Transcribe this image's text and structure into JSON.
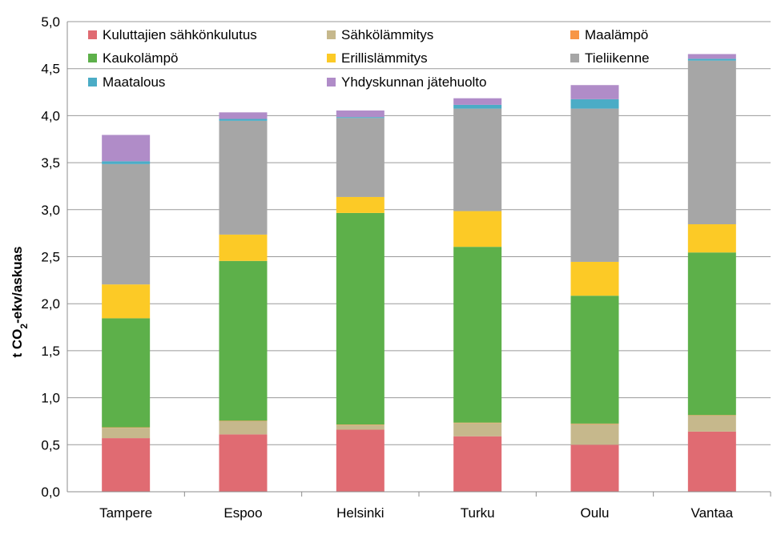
{
  "chart_data": {
    "type": "bar",
    "stacked": true,
    "title": "",
    "xlabel": "",
    "ylabel_parts": {
      "pre": "t CO",
      "sub": "2",
      "post": "-ekv/askuas"
    },
    "ylim": [
      0,
      5
    ],
    "ytick_step": 0.5,
    "yticks": [
      "0,0",
      "0,5",
      "1,0",
      "1,5",
      "2,0",
      "2,5",
      "3,0",
      "3,5",
      "4,0",
      "4,5",
      "5,0"
    ],
    "grid": true,
    "legend_position": "top",
    "categories": [
      "Tampere",
      "Espoo",
      "Helsinki",
      "Turku",
      "Oulu",
      "Vantaa"
    ],
    "series": [
      {
        "name": "Kuluttajien sähkönkulutus",
        "color": "#e06b72",
        "values": [
          0.57,
          0.61,
          0.66,
          0.59,
          0.5,
          0.64
        ]
      },
      {
        "name": "Sähkölämmitys",
        "color": "#c6b88c",
        "values": [
          0.11,
          0.14,
          0.05,
          0.14,
          0.22,
          0.17
        ]
      },
      {
        "name": "Maalämpö",
        "color": "#f79646",
        "values": [
          0.005,
          0.005,
          0.005,
          0.005,
          0.005,
          0.005
        ]
      },
      {
        "name": "Kaukolämpö",
        "color": "#5db04a",
        "values": [
          1.16,
          1.7,
          2.25,
          1.87,
          1.36,
          1.73
        ]
      },
      {
        "name": "Erillislämmitys",
        "color": "#fcca26",
        "values": [
          0.36,
          0.28,
          0.17,
          0.38,
          0.36,
          0.3
        ]
      },
      {
        "name": "Tieliikenne",
        "color": "#a6a6a6",
        "values": [
          1.28,
          1.21,
          0.84,
          1.09,
          1.63,
          1.74
        ]
      },
      {
        "name": "Maatalous",
        "color": "#4bacc6",
        "values": [
          0.03,
          0.02,
          0.01,
          0.04,
          0.1,
          0.02
        ]
      },
      {
        "name": "Yhdyskunnan jätehuolto",
        "color": "#b08cc8",
        "values": [
          0.28,
          0.07,
          0.07,
          0.07,
          0.15,
          0.05
        ]
      }
    ]
  }
}
